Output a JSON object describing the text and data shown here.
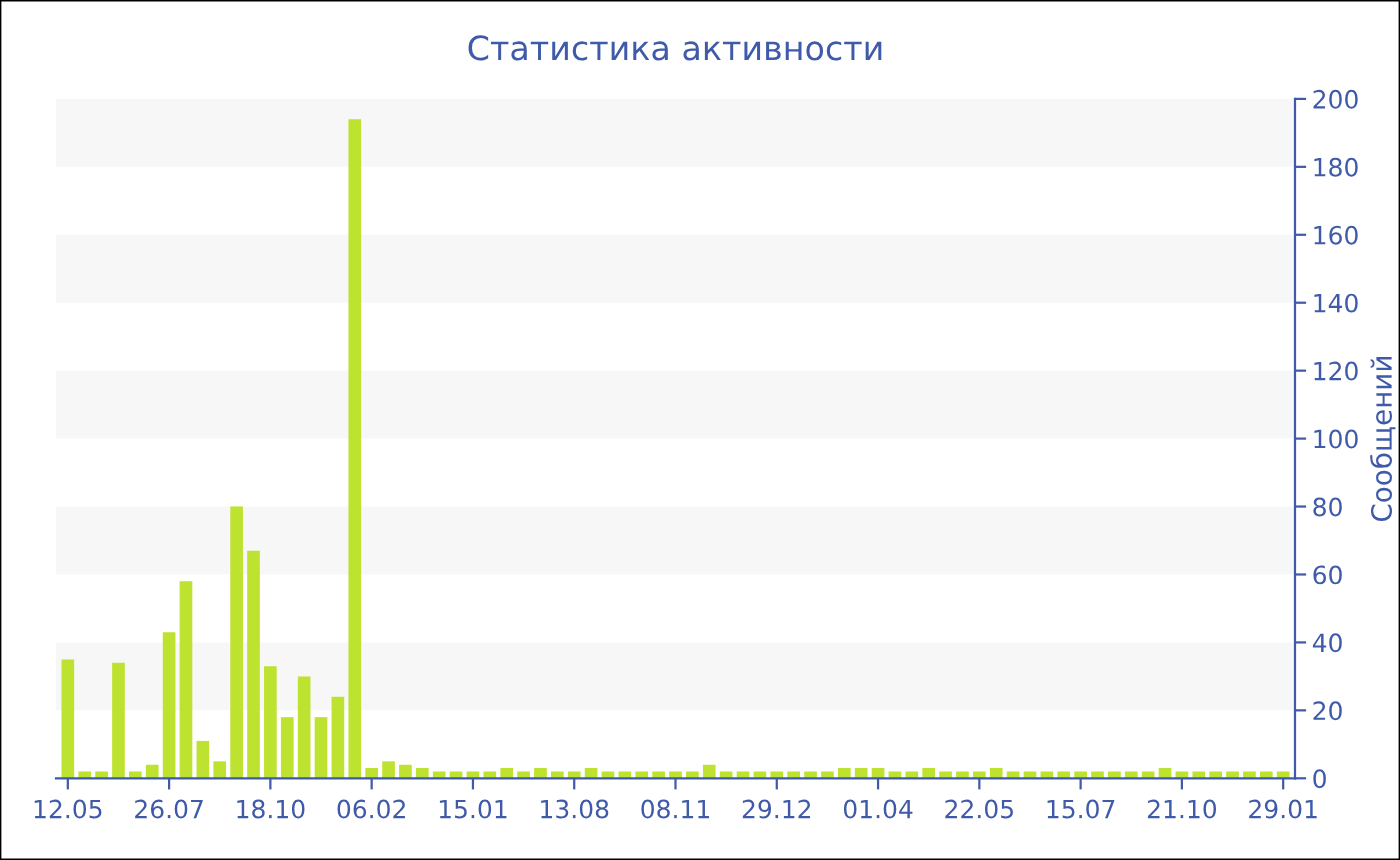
{
  "chart_data": {
    "type": "bar",
    "title": "Статистика активности",
    "ylabel": "Сообщений",
    "categories": [
      "12.05",
      null,
      null,
      null,
      null,
      null,
      "26.07",
      null,
      null,
      null,
      null,
      null,
      "18.10",
      null,
      null,
      null,
      null,
      null,
      "06.02",
      null,
      null,
      null,
      null,
      null,
      "15.01",
      null,
      null,
      null,
      null,
      null,
      "13.08",
      null,
      null,
      null,
      null,
      null,
      "08.11",
      null,
      null,
      null,
      null,
      null,
      "29.12",
      null,
      null,
      null,
      null,
      null,
      "01.04",
      null,
      null,
      null,
      null,
      null,
      "22.05",
      null,
      null,
      null,
      null,
      null,
      "15.07",
      null,
      null,
      null,
      null,
      null,
      "21.10",
      null,
      null,
      null,
      null,
      null,
      "29.01"
    ],
    "values": [
      35,
      2,
      2,
      34,
      2,
      4,
      43,
      58,
      11,
      5,
      80,
      67,
      33,
      18,
      30,
      18,
      24,
      194,
      3,
      5,
      4,
      3,
      2,
      2,
      2,
      2,
      3,
      2,
      3,
      2,
      2,
      3,
      2,
      2,
      2,
      2,
      2,
      2,
      4,
      2,
      2,
      2,
      2,
      2,
      2,
      2,
      3,
      3,
      3,
      2,
      2,
      3,
      2,
      2,
      2,
      3,
      2,
      2,
      2,
      2,
      2,
      2,
      2,
      2,
      2,
      3,
      2,
      2,
      2,
      2,
      2,
      2,
      2
    ],
    "color": "#bde22f",
    "ylim": [
      0,
      200
    ],
    "yticks": [
      0,
      20,
      40,
      60,
      80,
      100,
      120,
      140,
      160,
      180,
      200
    ],
    "bands": [
      {
        "axis": "y",
        "from": 20,
        "to": 40,
        "color": "#f7f7f7"
      },
      {
        "axis": "y",
        "from": 60,
        "to": 80,
        "color": "#f7f7f7"
      },
      {
        "axis": "y",
        "from": 100,
        "to": 120,
        "color": "#f7f7f7"
      },
      {
        "axis": "y",
        "from": 140,
        "to": 160,
        "color": "#f7f7f7"
      },
      {
        "axis": "y",
        "from": 180,
        "to": 200,
        "color": "#f7f7f7"
      }
    ],
    "grid": false,
    "legend": false
  }
}
